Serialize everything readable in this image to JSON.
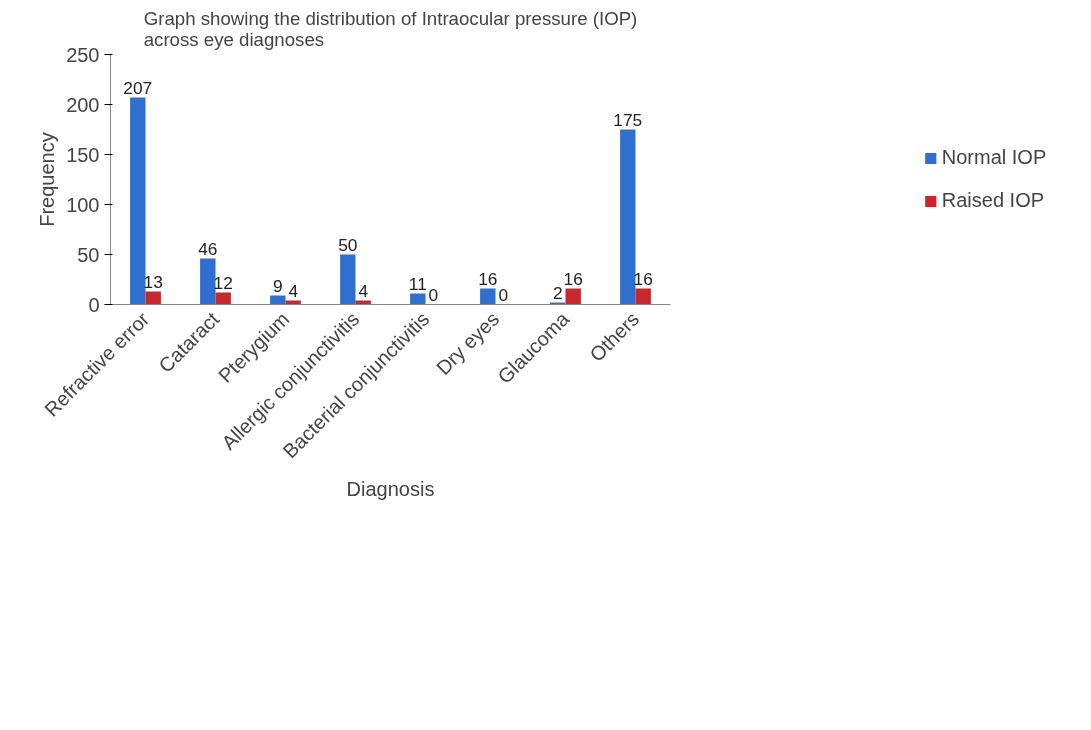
{
  "chart_data": {
    "type": "bar",
    "title": "Graph showing the distribution of Intraocular pressure (IOP)\nacross eye diagnoses",
    "xlabel": "Diagnosis",
    "ylabel": "Frequency",
    "categories": [
      "Refractive error",
      "Cataract",
      "Pterygium",
      "Allergic conjunctivitis",
      "Bacterial conjunctivitis",
      "Dry eyes",
      "Glaucoma",
      "Others"
    ],
    "series": [
      {
        "name": "Normal IOP",
        "color": "#2f6fcf",
        "values": [
          207,
          46,
          9,
          50,
          11,
          16,
          2,
          175
        ]
      },
      {
        "name": "Raised IOP",
        "color": "#c8282d",
        "values": [
          13,
          12,
          4,
          4,
          0,
          0,
          16,
          16
        ]
      }
    ],
    "ylim": [
      0,
      250
    ],
    "yticks": [
      0,
      50,
      100,
      150,
      200,
      250
    ],
    "data_labels": true,
    "legend": "right",
    "grid": false
  }
}
